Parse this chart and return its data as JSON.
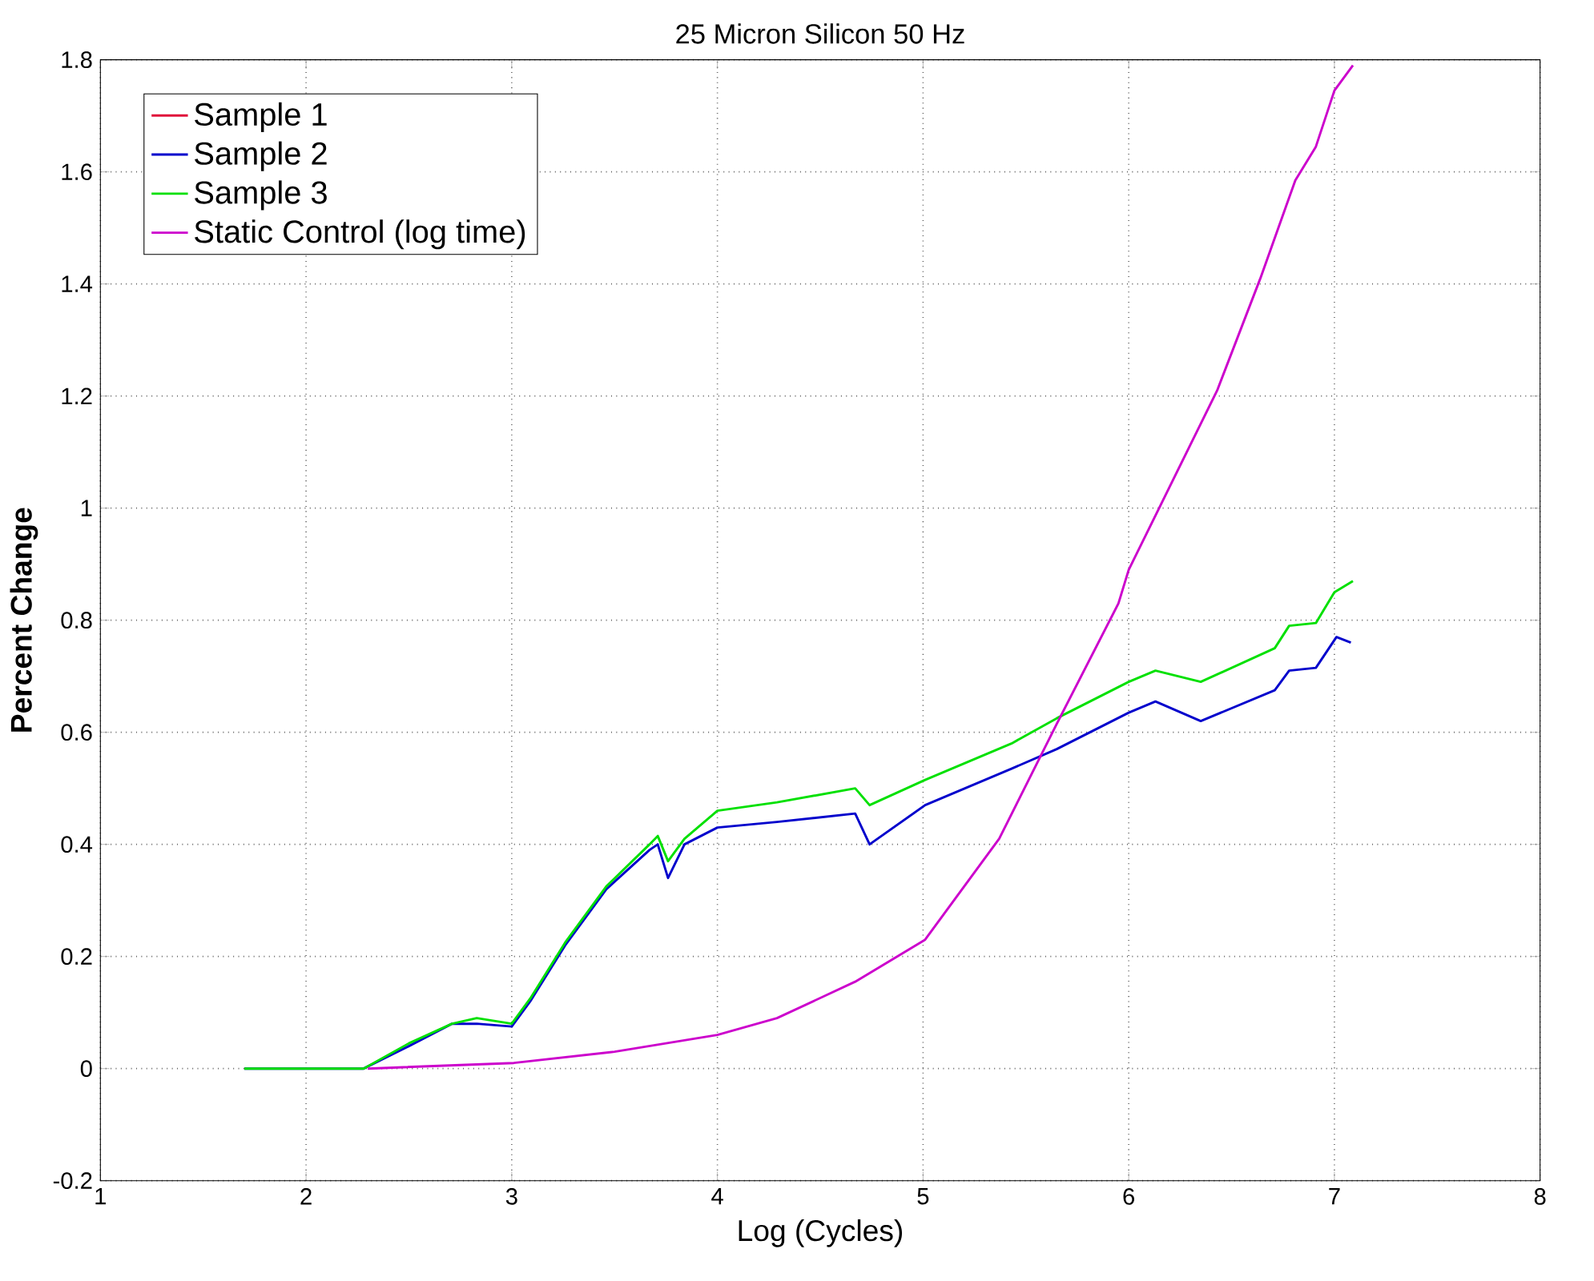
{
  "chart_data": {
    "type": "line",
    "title": "25 Micron Silicon 50 Hz",
    "xlabel": "Log (Cycles)",
    "ylabel": "Percent Change",
    "xlim": [
      1,
      8
    ],
    "ylim": [
      -0.2,
      1.8
    ],
    "xticks": [
      1,
      2,
      3,
      4,
      5,
      6,
      7,
      8
    ],
    "yticks": [
      -0.2,
      0,
      0.2,
      0.4,
      0.6,
      0.8,
      1,
      1.2,
      1.4,
      1.6,
      1.8
    ],
    "grid": true,
    "legend": "top left",
    "line_style": "solid",
    "marker": "none",
    "series": [
      {
        "name": "Sample 1",
        "color": "#e0103a",
        "values": [
          null
        ]
      },
      {
        "name": "Sample 2",
        "color": "#0000cc",
        "x": [
          1.7,
          2.0,
          2.28,
          2.5,
          2.71,
          2.83,
          3.0,
          3.09,
          3.26,
          3.46,
          3.67,
          3.71,
          3.76,
          3.84,
          4.0,
          4.29,
          4.67,
          4.74,
          5.01,
          5.43,
          5.65,
          6.0,
          6.13,
          6.35,
          6.71,
          6.78,
          6.91,
          7.01,
          7.08
        ],
        "values": [
          0,
          0,
          0,
          0.04,
          0.08,
          0.08,
          0.075,
          0.12,
          0.22,
          0.32,
          0.39,
          0.4,
          0.34,
          0.4,
          0.43,
          0.44,
          0.455,
          0.4,
          0.47,
          0.535,
          0.57,
          0.635,
          0.655,
          0.62,
          0.675,
          0.71,
          0.715,
          0.77,
          0.76
        ]
      },
      {
        "name": "Sample 3",
        "color": "#00e000",
        "x": [
          1.7,
          2.0,
          2.28,
          2.5,
          2.71,
          2.83,
          3.0,
          3.09,
          3.26,
          3.46,
          3.67,
          3.71,
          3.76,
          3.84,
          4.0,
          4.29,
          4.67,
          4.74,
          5.01,
          5.43,
          5.65,
          6.0,
          6.13,
          6.35,
          6.71,
          6.78,
          6.91,
          7.0,
          7.09
        ],
        "values": [
          0,
          0,
          0,
          0.045,
          0.08,
          0.09,
          0.08,
          0.125,
          0.225,
          0.325,
          0.4,
          0.415,
          0.37,
          0.41,
          0.46,
          0.475,
          0.5,
          0.47,
          0.515,
          0.58,
          0.625,
          0.69,
          0.71,
          0.69,
          0.75,
          0.79,
          0.795,
          0.85,
          0.87
        ]
      },
      {
        "name": "Static Control (log time)",
        "color": "#cc00cc",
        "x": [
          2.3,
          3.01,
          3.5,
          4.0,
          4.29,
          4.67,
          5.01,
          5.37,
          5.65,
          5.95,
          6.0,
          6.43,
          6.64,
          6.81,
          6.91,
          7.0,
          7.09
        ],
        "values": [
          0,
          0.01,
          0.03,
          0.06,
          0.09,
          0.155,
          0.23,
          0.41,
          0.615,
          0.83,
          0.89,
          1.21,
          1.41,
          1.585,
          1.645,
          1.745,
          1.79
        ]
      }
    ]
  }
}
